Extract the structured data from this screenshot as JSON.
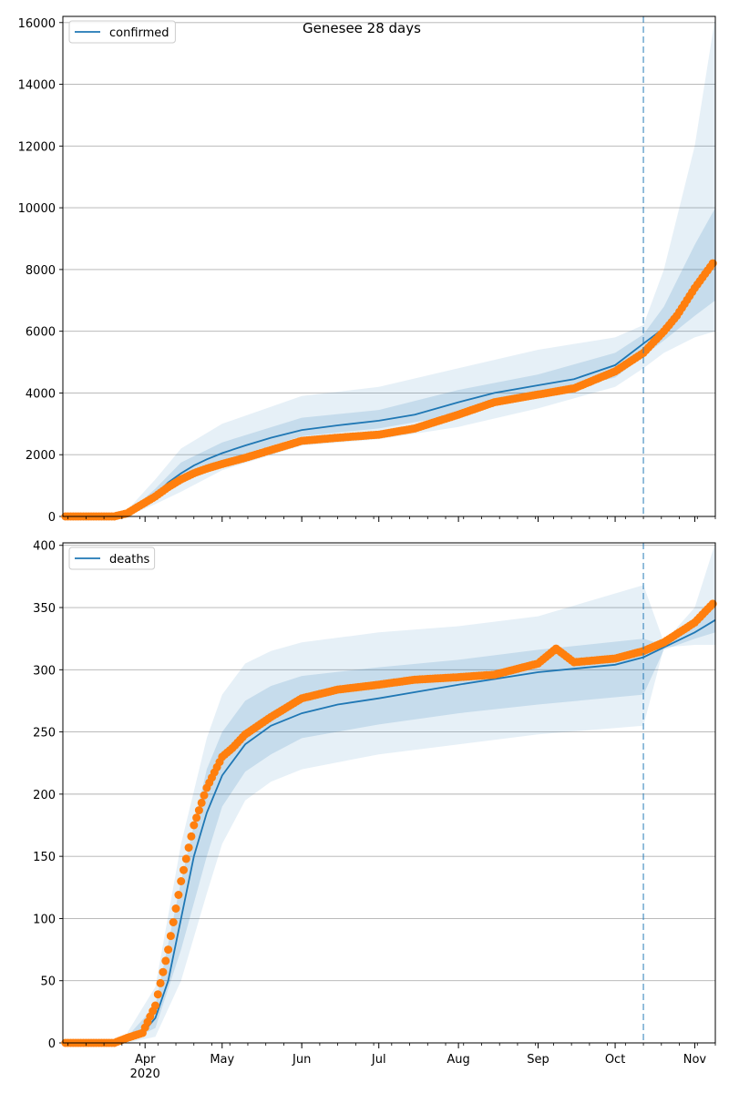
{
  "figure": {
    "title": "Genesee 28 days"
  },
  "chart_data": [
    {
      "type": "line",
      "title": "Genesee 28 days",
      "legend": [
        "confirmed"
      ],
      "legend_position": "top-left",
      "grid": "horizontal",
      "x_tick_labels": [
        "Apr\n2020",
        "May",
        "Jun",
        "Jul",
        "Aug",
        "Sep",
        "Oct",
        "Nov"
      ],
      "ylim": [
        0,
        16200
      ],
      "y_ticks": [
        0,
        2000,
        4000,
        6000,
        8000,
        10000,
        12000,
        14000,
        16000
      ],
      "forecast_start": "2020-10-12",
      "model_median": {
        "x": [
          "2020-03-10",
          "2020-03-15",
          "2020-03-20",
          "2020-03-25",
          "2020-03-31",
          "2020-04-05",
          "2020-04-10",
          "2020-04-15",
          "2020-04-20",
          "2020-04-25",
          "2020-05-01",
          "2020-05-10",
          "2020-05-20",
          "2020-06-01",
          "2020-06-15",
          "2020-07-01",
          "2020-07-15",
          "2020-08-01",
          "2020-08-15",
          "2020-09-01",
          "2020-09-15",
          "2020-10-01",
          "2020-10-12",
          "2020-10-20",
          "2020-10-25",
          "2020-11-01",
          "2020-11-09"
        ],
        "y": [
          0,
          0,
          0,
          50,
          300,
          700,
          1100,
          1400,
          1650,
          1850,
          2050,
          2300,
          2550,
          2800,
          2950,
          3100,
          3300,
          3700,
          4000,
          4250,
          4450,
          4900,
          5600,
          6100,
          6500,
          7300,
          8200
        ]
      },
      "band_outer": {
        "x": [
          "2020-03-25",
          "2020-04-05",
          "2020-04-15",
          "2020-05-01",
          "2020-06-01",
          "2020-07-01",
          "2020-08-01",
          "2020-09-01",
          "2020-10-01",
          "2020-10-12",
          "2020-10-20",
          "2020-11-01",
          "2020-11-09"
        ],
        "lower": [
          0,
          400,
          800,
          1500,
          2300,
          2500,
          2900,
          3500,
          4200,
          4800,
          5300,
          5800,
          6000
        ],
        "upper": [
          200,
          1200,
          2200,
          3000,
          3900,
          4200,
          4800,
          5400,
          5800,
          6200,
          8000,
          12000,
          16200
        ]
      },
      "band_inner": {
        "x": [
          "2020-03-25",
          "2020-04-05",
          "2020-04-15",
          "2020-05-01",
          "2020-06-01",
          "2020-07-01",
          "2020-08-01",
          "2020-09-01",
          "2020-10-01",
          "2020-10-12",
          "2020-10-20",
          "2020-11-01",
          "2020-11-09"
        ],
        "lower": [
          20,
          550,
          1100,
          1800,
          2600,
          2850,
          3300,
          3900,
          4500,
          5200,
          5700,
          6500,
          7000
        ],
        "upper": [
          100,
          900,
          1750,
          2400,
          3200,
          3450,
          4100,
          4600,
          5300,
          5900,
          6800,
          8800,
          10000
        ]
      },
      "observed": {
        "x": [
          "2020-03-01",
          "2020-03-10",
          "2020-03-20",
          "2020-03-25",
          "2020-03-31",
          "2020-04-05",
          "2020-04-10",
          "2020-04-15",
          "2020-04-20",
          "2020-04-25",
          "2020-05-01",
          "2020-05-10",
          "2020-05-20",
          "2020-06-01",
          "2020-06-15",
          "2020-07-01",
          "2020-07-15",
          "2020-08-01",
          "2020-08-15",
          "2020-09-01",
          "2020-09-15",
          "2020-10-01",
          "2020-10-12",
          "2020-10-20",
          "2020-10-25",
          "2020-11-01",
          "2020-11-08"
        ],
        "y": [
          0,
          0,
          0,
          100,
          400,
          650,
          950,
          1200,
          1400,
          1550,
          1700,
          1900,
          2150,
          2450,
          2550,
          2650,
          2850,
          3300,
          3700,
          3950,
          4150,
          4700,
          5300,
          6000,
          6500,
          7400,
          8200
        ]
      }
    },
    {
      "type": "line",
      "legend": [
        "deaths"
      ],
      "legend_position": "top-left",
      "grid": "horizontal",
      "x_tick_labels": [
        "Apr\n2020",
        "May",
        "Jun",
        "Jul",
        "Aug",
        "Sep",
        "Oct",
        "Nov"
      ],
      "ylim": [
        0,
        402
      ],
      "y_ticks": [
        0,
        50,
        100,
        150,
        200,
        250,
        300,
        350,
        400
      ],
      "forecast_start": "2020-10-12",
      "model_median": {
        "x": [
          "2020-03-10",
          "2020-03-20",
          "2020-03-25",
          "2020-03-31",
          "2020-04-05",
          "2020-04-10",
          "2020-04-15",
          "2020-04-20",
          "2020-04-25",
          "2020-05-01",
          "2020-05-10",
          "2020-05-20",
          "2020-06-01",
          "2020-06-15",
          "2020-07-01",
          "2020-08-01",
          "2020-09-01",
          "2020-10-01",
          "2020-10-12",
          "2020-10-20",
          "2020-11-01",
          "2020-11-09"
        ],
        "y": [
          0,
          1,
          3,
          8,
          20,
          50,
          100,
          150,
          185,
          215,
          240,
          255,
          265,
          272,
          277,
          288,
          298,
          304,
          310,
          318,
          330,
          340
        ]
      },
      "band_outer": {
        "x": [
          "2020-03-25",
          "2020-04-05",
          "2020-04-15",
          "2020-04-25",
          "2020-05-01",
          "2020-05-10",
          "2020-05-20",
          "2020-06-01",
          "2020-07-01",
          "2020-08-01",
          "2020-09-01",
          "2020-10-12",
          "2020-10-20",
          "2020-11-01",
          "2020-11-09"
        ],
        "lower": [
          0,
          5,
          50,
          120,
          160,
          195,
          210,
          220,
          232,
          240,
          248,
          255,
          318,
          320,
          320
        ],
        "upper": [
          8,
          45,
          160,
          245,
          280,
          305,
          315,
          322,
          330,
          335,
          343,
          368,
          322,
          350,
          402
        ]
      },
      "band_inner": {
        "x": [
          "2020-03-25",
          "2020-04-05",
          "2020-04-15",
          "2020-04-25",
          "2020-05-01",
          "2020-05-10",
          "2020-05-20",
          "2020-06-01",
          "2020-07-01",
          "2020-08-01",
          "2020-09-01",
          "2020-10-12",
          "2020-10-20",
          "2020-11-01",
          "2020-11-09"
        ],
        "lower": [
          1,
          12,
          75,
          150,
          190,
          218,
          232,
          245,
          256,
          265,
          272,
          280,
          316,
          325,
          330
        ],
        "upper": [
          5,
          30,
          130,
          220,
          250,
          275,
          287,
          295,
          302,
          308,
          316,
          325,
          320,
          338,
          355
        ]
      },
      "observed": {
        "x": [
          "2020-03-01",
          "2020-03-20",
          "2020-03-25",
          "2020-03-31",
          "2020-04-05",
          "2020-04-10",
          "2020-04-15",
          "2020-04-20",
          "2020-04-25",
          "2020-05-01",
          "2020-05-05",
          "2020-05-10",
          "2020-05-20",
          "2020-06-01",
          "2020-06-15",
          "2020-07-01",
          "2020-07-15",
          "2020-08-01",
          "2020-08-15",
          "2020-09-01",
          "2020-09-08",
          "2020-09-15",
          "2020-10-01",
          "2020-10-12",
          "2020-10-20",
          "2020-11-01",
          "2020-11-08"
        ],
        "y": [
          0,
          0,
          4,
          8,
          30,
          75,
          130,
          175,
          205,
          230,
          237,
          248,
          262,
          277,
          284,
          288,
          292,
          294,
          296,
          305,
          317,
          306,
          309,
          315,
          322,
          338,
          353
        ]
      }
    }
  ]
}
